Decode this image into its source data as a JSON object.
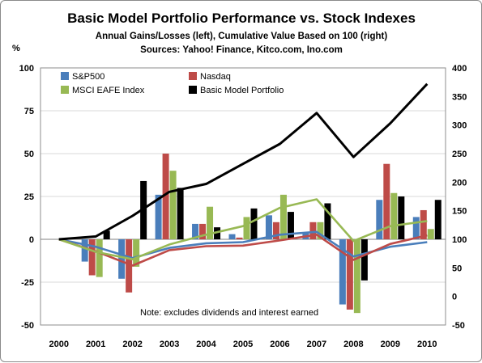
{
  "chart_data": {
    "type": "bar",
    "title": "Basic Model Portfolio Performance vs. Stock Indexes",
    "subtitle_1": "Annual Gains/Losses (left), Cumulative Value Based on 100 (right)",
    "subtitle_2": "Sources: Yahoo! Finance, Kitco.com, Ino.com",
    "ylabel_left": "%",
    "note": "Note:  excludes dividends  and interest earned",
    "categories": [
      "2000",
      "2001",
      "2002",
      "2003",
      "2004",
      "2005",
      "2006",
      "2007",
      "2008",
      "2009",
      "2010"
    ],
    "ylim_left": [
      -50,
      100
    ],
    "ylim_right": [
      -50,
      400
    ],
    "yticks_left": [
      -50,
      -25,
      0,
      25,
      50,
      75,
      100
    ],
    "yticks_right": [
      -50,
      0,
      50,
      100,
      150,
      200,
      250,
      300,
      350,
      400
    ],
    "grid": "horizontal",
    "legend_position": "top-left",
    "bar_series": [
      {
        "name": "S&P500",
        "color": "#4a7ebb",
        "values": [
          null,
          -13,
          -23,
          26,
          9,
          3,
          14,
          4,
          -38,
          23,
          13
        ]
      },
      {
        "name": "Nasdaq",
        "color": "#be4b48",
        "values": [
          null,
          -21,
          -31,
          50,
          9,
          1,
          10,
          10,
          -41,
          44,
          17
        ]
      },
      {
        "name": "MSCI EAFE Index",
        "color": "#98b954",
        "values": [
          null,
          -22,
          -16,
          40,
          19,
          13,
          26,
          10,
          -43,
          27,
          6
        ]
      },
      {
        "name": "Basic Model Portfolio",
        "color": "#000000",
        "values": [
          null,
          5,
          34,
          30,
          7,
          18,
          16,
          21,
          -24,
          25,
          23
        ]
      }
    ],
    "line_series": [
      {
        "name": "S&P500",
        "color": "#4a7ebb",
        "values": [
          100,
          87,
          67,
          85,
          93,
          95,
          108,
          113,
          70,
          87,
          95
        ]
      },
      {
        "name": "Nasdaq",
        "color": "#be4b48",
        "values": [
          100,
          79,
          54,
          81,
          88,
          89,
          98,
          108,
          64,
          92,
          107
        ]
      },
      {
        "name": "MSCI EAFE Index",
        "color": "#98b954",
        "values": [
          100,
          78,
          65,
          91,
          108,
          123,
          155,
          170,
          97,
          123,
          132
        ]
      },
      {
        "name": "Basic Model Portfolio",
        "color": "#000000",
        "values": [
          100,
          105,
          141,
          183,
          197,
          232,
          267,
          321,
          244,
          303,
          372
        ]
      }
    ]
  }
}
